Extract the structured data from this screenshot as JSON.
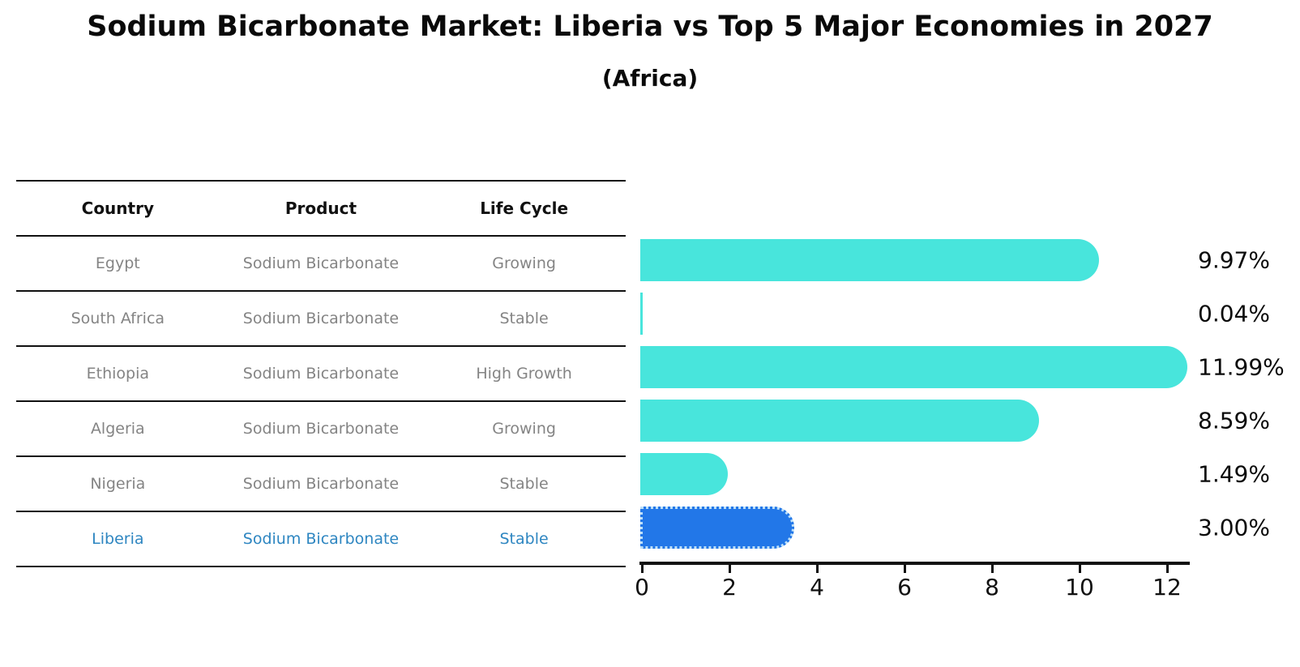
{
  "chart_data": {
    "type": "bar",
    "orientation": "horizontal",
    "title": "Sodium Bicarbonate Market: Liberia vs Top 5 Major Economies in 2027",
    "subtitle": "(Africa)",
    "categories": [
      "Egypt",
      "South Africa",
      "Ethiopia",
      "Algeria",
      "Nigeria",
      "Liberia"
    ],
    "values": [
      9.97,
      0.04,
      11.99,
      8.59,
      1.49,
      3.0
    ],
    "value_labels": [
      "9.97%",
      "0.04%",
      "11.99%",
      "8.59%",
      "1.49%",
      "3.00%"
    ],
    "xticks": [
      0,
      2,
      4,
      6,
      8,
      10,
      12
    ],
    "xlim": [
      0,
      12.55
    ],
    "grid": false,
    "legend": false,
    "highlight_index": 5,
    "colors": {
      "bar": "#48E5DC",
      "highlight_bar": "#2277E8",
      "highlight_bar_border": "#BEE0F8",
      "highlight_text": "#2E86C1",
      "table_text": "#848484",
      "header_text": "#111111",
      "axis": "#111111"
    }
  },
  "table": {
    "headers": [
      "Country",
      "Product",
      "Life Cycle"
    ],
    "rows": [
      {
        "country": "Egypt",
        "product": "Sodium Bicarbonate",
        "life_cycle": "Growing",
        "highlight": false
      },
      {
        "country": "South Africa",
        "product": "Sodium Bicarbonate",
        "life_cycle": "Stable",
        "highlight": false
      },
      {
        "country": "Ethiopia",
        "product": "Sodium Bicarbonate",
        "life_cycle": "High Growth",
        "highlight": false
      },
      {
        "country": "Algeria",
        "product": "Sodium Bicarbonate",
        "life_cycle": "Growing",
        "highlight": false
      },
      {
        "country": "Nigeria",
        "product": "Sodium Bicarbonate",
        "life_cycle": "Stable",
        "highlight": false
      },
      {
        "country": "Liberia",
        "product": "Sodium Bicarbonate",
        "life_cycle": "Stable",
        "highlight": true
      }
    ]
  }
}
